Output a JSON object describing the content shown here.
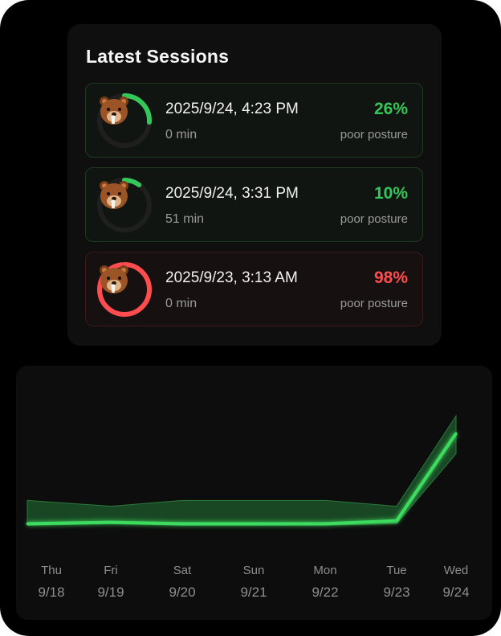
{
  "sessions": {
    "title": "Latest Sessions",
    "items": [
      {
        "date": "2025/9/24, 4:23 PM",
        "duration": "0 min",
        "percent": "26%",
        "label": "poor posture",
        "ring_fraction": 0.26,
        "status": "good"
      },
      {
        "date": "2025/9/24, 3:31 PM",
        "duration": "51 min",
        "percent": "10%",
        "label": "poor posture",
        "ring_fraction": 0.1,
        "status": "good"
      },
      {
        "date": "2025/9/23, 3:13 AM",
        "duration": "0 min",
        "percent": "98%",
        "label": "poor posture",
        "ring_fraction": 0.98,
        "status": "bad"
      }
    ]
  },
  "colors": {
    "good": "#34c759",
    "bad": "#ff4d4f",
    "ring_track": "#1f1f1f"
  },
  "icons": {
    "avatar": "bear-face-icon"
  },
  "chart_data": {
    "type": "area",
    "x_days": [
      "Thu",
      "Fri",
      "Sat",
      "Sun",
      "Mon",
      "Tue",
      "Wed"
    ],
    "x_dates": [
      "9/18",
      "9/19",
      "9/20",
      "9/21",
      "9/22",
      "9/23",
      "9/24"
    ],
    "series": [
      {
        "values": [
          2,
          3,
          2,
          2,
          2,
          4,
          64
        ]
      }
    ],
    "band_upper": [
      18,
      14,
      18,
      18,
      18,
      14,
      76
    ],
    "band_lower": [
      1,
      2,
      1,
      1,
      1,
      2,
      50
    ],
    "ylim": [
      0,
      80
    ],
    "grid": false,
    "legend": "none"
  }
}
